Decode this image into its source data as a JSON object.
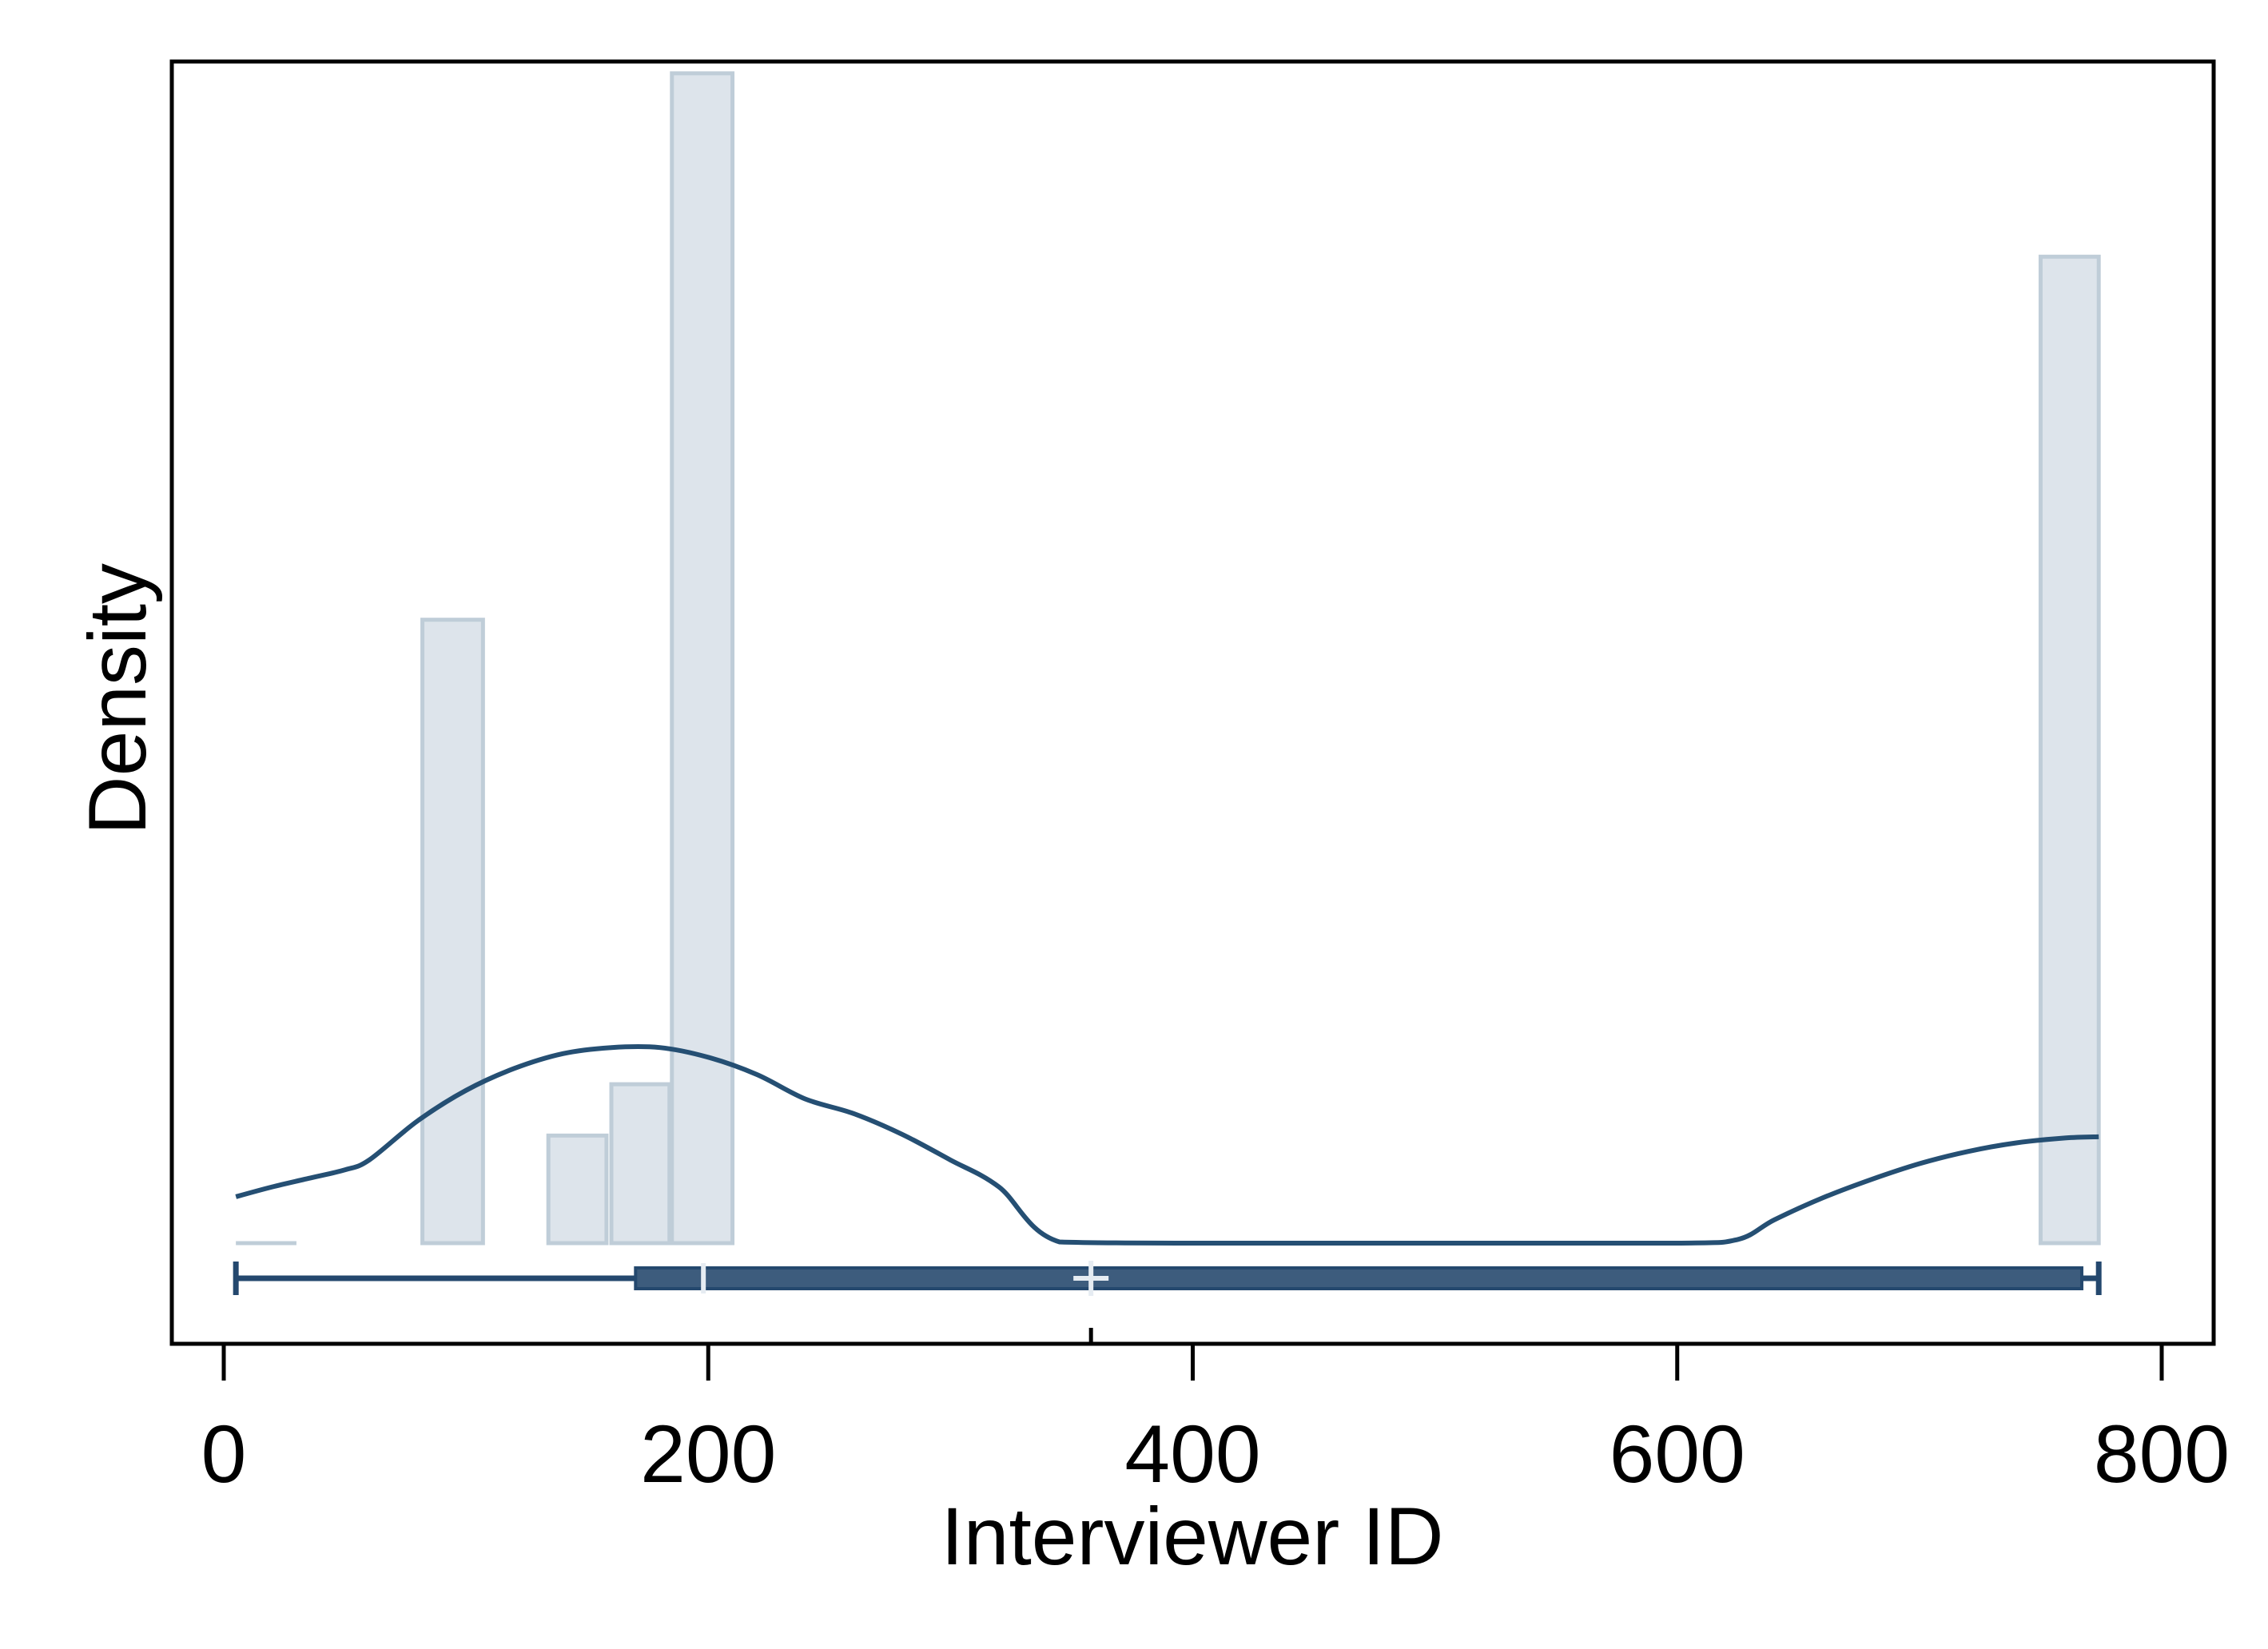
{
  "chart_data": {
    "type": "histogram",
    "xlabel": "Interviewer ID",
    "ylabel": "Density",
    "xlim": [
      -20,
      820
    ],
    "x_ticks": [
      0,
      200,
      400,
      600,
      800
    ],
    "y_ticks": [],
    "grid": false,
    "legend": "none",
    "histogram": {
      "bins": [
        {
          "x0": 5,
          "x1": 30,
          "density": 0.0
        },
        {
          "x0": 82,
          "x1": 107,
          "density": 0.51
        },
        {
          "x0": 134,
          "x1": 158,
          "density": 0.088
        },
        {
          "x0": 160,
          "x1": 184,
          "density": 0.13
        },
        {
          "x0": 185,
          "x1": 210,
          "density": 0.957
        },
        {
          "x0": 750,
          "x1": 774,
          "density": 0.807
        }
      ]
    },
    "kde": {
      "x": [
        5,
        20,
        35,
        50,
        60,
        80,
        100,
        120,
        140,
        160,
        180,
        200,
        220,
        240,
        260,
        280,
        300,
        320,
        345,
        400,
        500,
        600,
        625,
        640,
        660,
        680,
        700,
        720,
        740,
        760,
        774
      ],
      "y": [
        0.038,
        0.046,
        0.053,
        0.06,
        0.068,
        0.1,
        0.125,
        0.143,
        0.155,
        0.16,
        0.16,
        0.152,
        0.138,
        0.118,
        0.106,
        0.089,
        0.068,
        0.046,
        0.001,
        0.0,
        0.0,
        0.0,
        0.003,
        0.019,
        0.037,
        0.052,
        0.065,
        0.075,
        0.082,
        0.086,
        0.087
      ]
    },
    "boxplot": {
      "whisker_low": 5,
      "q1": 170,
      "median": 198,
      "mean": 358,
      "q3": 767,
      "whisker_high": 774
    },
    "colors": {
      "bar_fill": "#dde4eb",
      "bar_stroke": "#bfcdd8",
      "kde": "#254f73",
      "box": "#3d5c7d",
      "box_stroke": "#24486e",
      "marker": "#e6ecf2"
    }
  }
}
